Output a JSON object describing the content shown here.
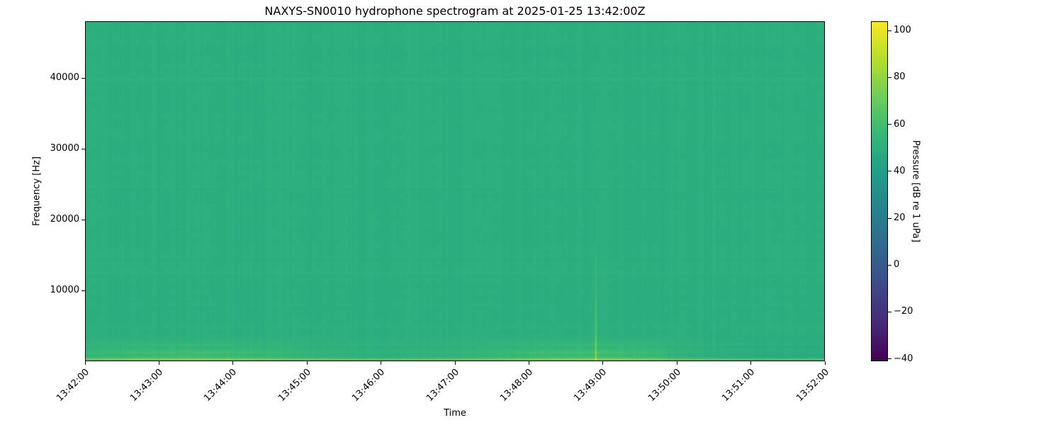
{
  "chart_data": {
    "type": "heatmap",
    "title": "NAXYS-SN0010 hydrophone spectrogram at 2025-01-25 13:42:00Z",
    "xlabel": "Time",
    "ylabel": "Frequency [Hz]",
    "colorbar_label": "Pressure [dB re 1 uPa]",
    "colormap": "viridis",
    "x_range": [
      "13:42:00",
      "13:52:00"
    ],
    "x_ticks": [
      "13:42:00",
      "13:43:00",
      "13:44:00",
      "13:45:00",
      "13:46:00",
      "13:47:00",
      "13:48:00",
      "13:49:00",
      "13:50:00",
      "13:51:00",
      "13:52:00"
    ],
    "ylim": [
      0,
      48000
    ],
    "y_ticks": [
      10000,
      20000,
      30000,
      40000
    ],
    "clim": [
      -41,
      104
    ],
    "colorbar_ticks": [
      -40,
      -20,
      0,
      20,
      40,
      60,
      80,
      100
    ],
    "background_level_db": 50,
    "low_frequency_band": {
      "max_hz": 4000,
      "level_db": 62
    },
    "transient_events": [
      {
        "time": "13:48:54",
        "level_db": 75,
        "max_hz": 18000
      }
    ],
    "grid": false
  }
}
